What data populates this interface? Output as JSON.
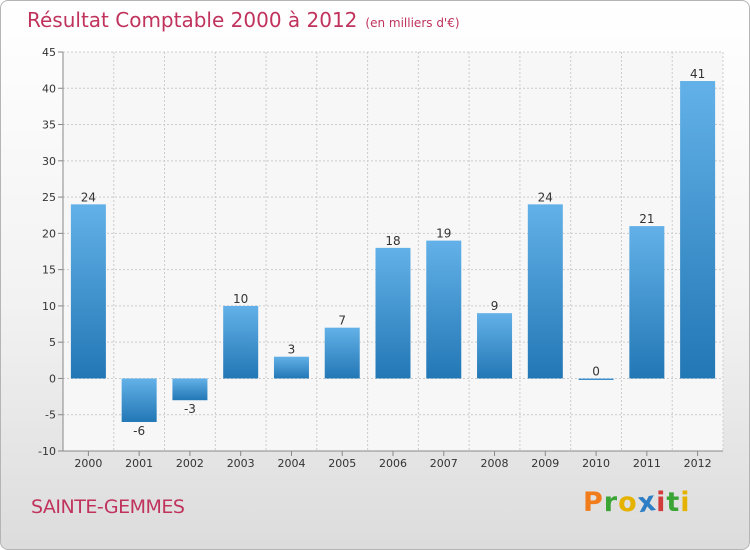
{
  "header": {
    "title": "Résultat Comptable 2000 à 2012",
    "unit": "(en milliers d'€)"
  },
  "footer": {
    "commune": "SAINTE-GEMMES",
    "logo_letters": [
      "P",
      "r",
      "o",
      "x",
      "i",
      "t",
      "i"
    ],
    "logo_colors": [
      "#f07c1c",
      "#3aa535",
      "#e6b200",
      "#2d7ec4",
      "#d33a3a",
      "#3aa535",
      "#e6b200"
    ]
  },
  "chart_data": {
    "type": "bar",
    "title": "Résultat Comptable 2000 à 2012",
    "subtitle": "(en milliers d'€)",
    "categories": [
      "2000",
      "2001",
      "2002",
      "2003",
      "2004",
      "2005",
      "2006",
      "2007",
      "2008",
      "2009",
      "2010",
      "2011",
      "2012"
    ],
    "values": [
      24,
      -6,
      -3,
      10,
      3,
      7,
      18,
      19,
      9,
      24,
      0,
      21,
      41
    ],
    "data_labels": [
      "24",
      "-6",
      "-3",
      "10",
      "3",
      "7",
      "18",
      "19",
      "9",
      "24",
      "0",
      "21",
      "41"
    ],
    "ylim": [
      -10,
      45
    ],
    "yticks": [
      -10,
      -5,
      0,
      5,
      10,
      15,
      20,
      25,
      30,
      35,
      40,
      45
    ],
    "ytick_labels": [
      "-10",
      "-5",
      "0",
      "5",
      "10",
      "15",
      "20",
      "25",
      "30",
      "35",
      "40",
      "45"
    ],
    "xlabel": "",
    "ylabel": "",
    "grid": true,
    "colors": {
      "bar_top": "#63b1e8",
      "bar_bottom": "#2277b5",
      "grid": "#cccccc",
      "axis": "#888888",
      "plot_bg": "#f7f7f7"
    }
  }
}
